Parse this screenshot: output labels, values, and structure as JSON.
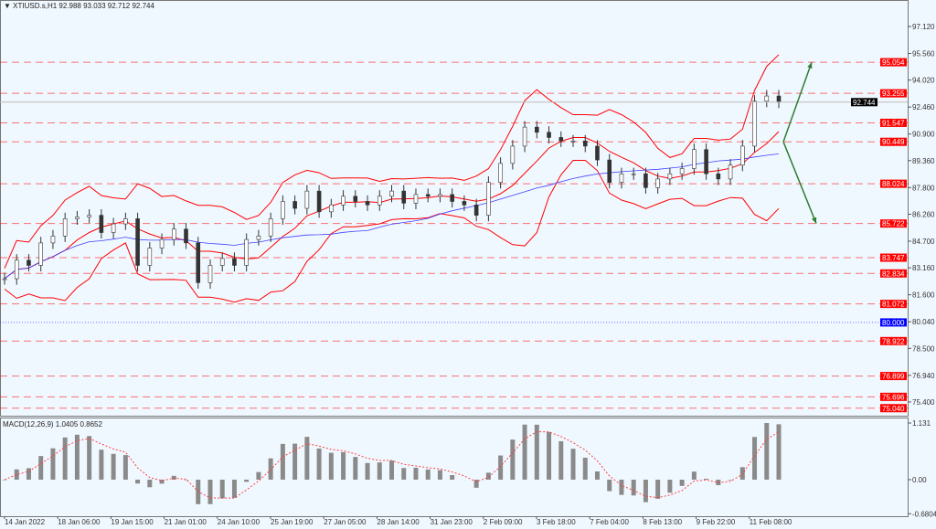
{
  "header": {
    "symbol": "XTIUSD.s,H1",
    "ohlc": "92.988 93.033 92.712 92.744"
  },
  "macd_label": "MACD(12,26,9) 1.0405 0.8652",
  "colors": {
    "bg": "#f0f8ff",
    "level": "#ff0000",
    "blue_level": "#0000ff",
    "bands": "#ff0000",
    "ma": "#4040ff",
    "arrow": "#2e7d32",
    "candle": "#333333"
  },
  "chart_data": {
    "type": "candlestick",
    "symbol": "XTIUSD.s",
    "timeframe": "H1",
    "close": [
      82.53,
      83.6,
      83.3,
      84.6,
      85.0,
      86.0,
      86.1,
      86.2,
      85.2,
      85.7,
      86.0,
      83.3,
      84.3,
      84.8,
      85.4,
      84.6,
      82.3,
      83.3,
      83.7,
      83.3,
      84.8,
      85.0,
      86.0,
      87.0,
      86.6,
      87.6,
      86.4,
      86.8,
      87.3,
      87.0,
      86.8,
      87.3,
      87.6,
      86.9,
      87.4,
      87.3,
      87.4,
      87.0,
      86.8,
      86.2,
      88.1,
      89.2,
      90.2,
      91.3,
      91.0,
      90.7,
      90.5,
      90.5,
      90.2,
      89.4,
      88.1,
      88.6,
      88.6,
      87.8,
      88.3,
      88.6,
      88.9,
      90.0,
      88.6,
      88.3,
      89.1,
      90.2,
      92.8,
      93.1,
      92.744
    ],
    "price_ticks": [
      "97.120",
      "95.560",
      "94.020",
      "92.460",
      "90.900",
      "89.360",
      "87.800",
      "86.260",
      "84.700",
      "83.160",
      "81.600",
      "80.040",
      "78.500",
      "76.940",
      "75.400"
    ],
    "price_tick_values": [
      97.12,
      95.56,
      94.02,
      92.46,
      90.9,
      89.36,
      87.8,
      86.26,
      84.7,
      83.16,
      81.6,
      80.04,
      78.5,
      76.94,
      75.4
    ],
    "ylim": [
      75.0,
      97.7
    ],
    "time_labels": [
      "14 Jan 2022",
      "18 Jan 06:00",
      "19 Jan 15:00",
      "21 Jan 01:00",
      "24 Jan 10:00",
      "25 Jan 19:00",
      "27 Jan 05:00",
      "28 Jan 14:00",
      "31 Jan 23:00",
      "2 Feb 09:00",
      "3 Feb 18:00",
      "7 Feb 04:00",
      "8 Feb 13:00",
      "9 Feb 22:00",
      "11 Feb 08:00"
    ],
    "levels": [
      {
        "value": 95.054,
        "label": "95.054",
        "style": "dashed",
        "color": "#ff0000"
      },
      {
        "value": 93.255,
        "label": "93.255",
        "style": "dashed",
        "color": "#ff0000"
      },
      {
        "value": 91.547,
        "label": "91.547",
        "style": "dashed",
        "color": "#ff0000"
      },
      {
        "value": 90.449,
        "label": "90.449",
        "style": "dashed",
        "color": "#ff0000"
      },
      {
        "value": 88.024,
        "label": "88.024",
        "style": "dashed",
        "color": "#ff0000"
      },
      {
        "value": 85.722,
        "label": "85.722",
        "style": "dashed",
        "color": "#ff0000"
      },
      {
        "value": 83.747,
        "label": "83.747",
        "style": "dashed",
        "color": "#ff0000"
      },
      {
        "value": 82.834,
        "label": "82.834",
        "style": "dashed",
        "color": "#ff0000"
      },
      {
        "value": 81.072,
        "label": "81.072",
        "style": "dashed",
        "color": "#ff0000"
      },
      {
        "value": 80.0,
        "label": "80.000",
        "style": "dotted",
        "color": "#0000ff"
      },
      {
        "value": 78.922,
        "label": "78.922",
        "style": "dashed",
        "color": "#ff0000"
      },
      {
        "value": 76.899,
        "label": "76.899",
        "style": "dashed",
        "color": "#ff0000"
      },
      {
        "value": 75.696,
        "label": "75.696",
        "style": "dashed",
        "color": "#ff0000"
      },
      {
        "value": 75.04,
        "label": "75.040",
        "style": "dashed",
        "color": "#ff0000"
      }
    ],
    "current_price": {
      "value": 92.744,
      "label": "92.744"
    },
    "indicators": [
      "Bollinger Bands",
      "Moving Average",
      "MACD(12,26,9)"
    ],
    "arrows": [
      {
        "from": 90.449,
        "to": 95.054,
        "direction": "up"
      },
      {
        "from": 90.449,
        "to": 85.722,
        "direction": "down"
      }
    ],
    "macd": {
      "ticks": [
        "1.131",
        "0.00",
        "-0.6804"
      ],
      "tick_values": [
        1.131,
        0,
        -0.6804
      ],
      "macd": 1.0405,
      "signal": 0.8652
    }
  }
}
